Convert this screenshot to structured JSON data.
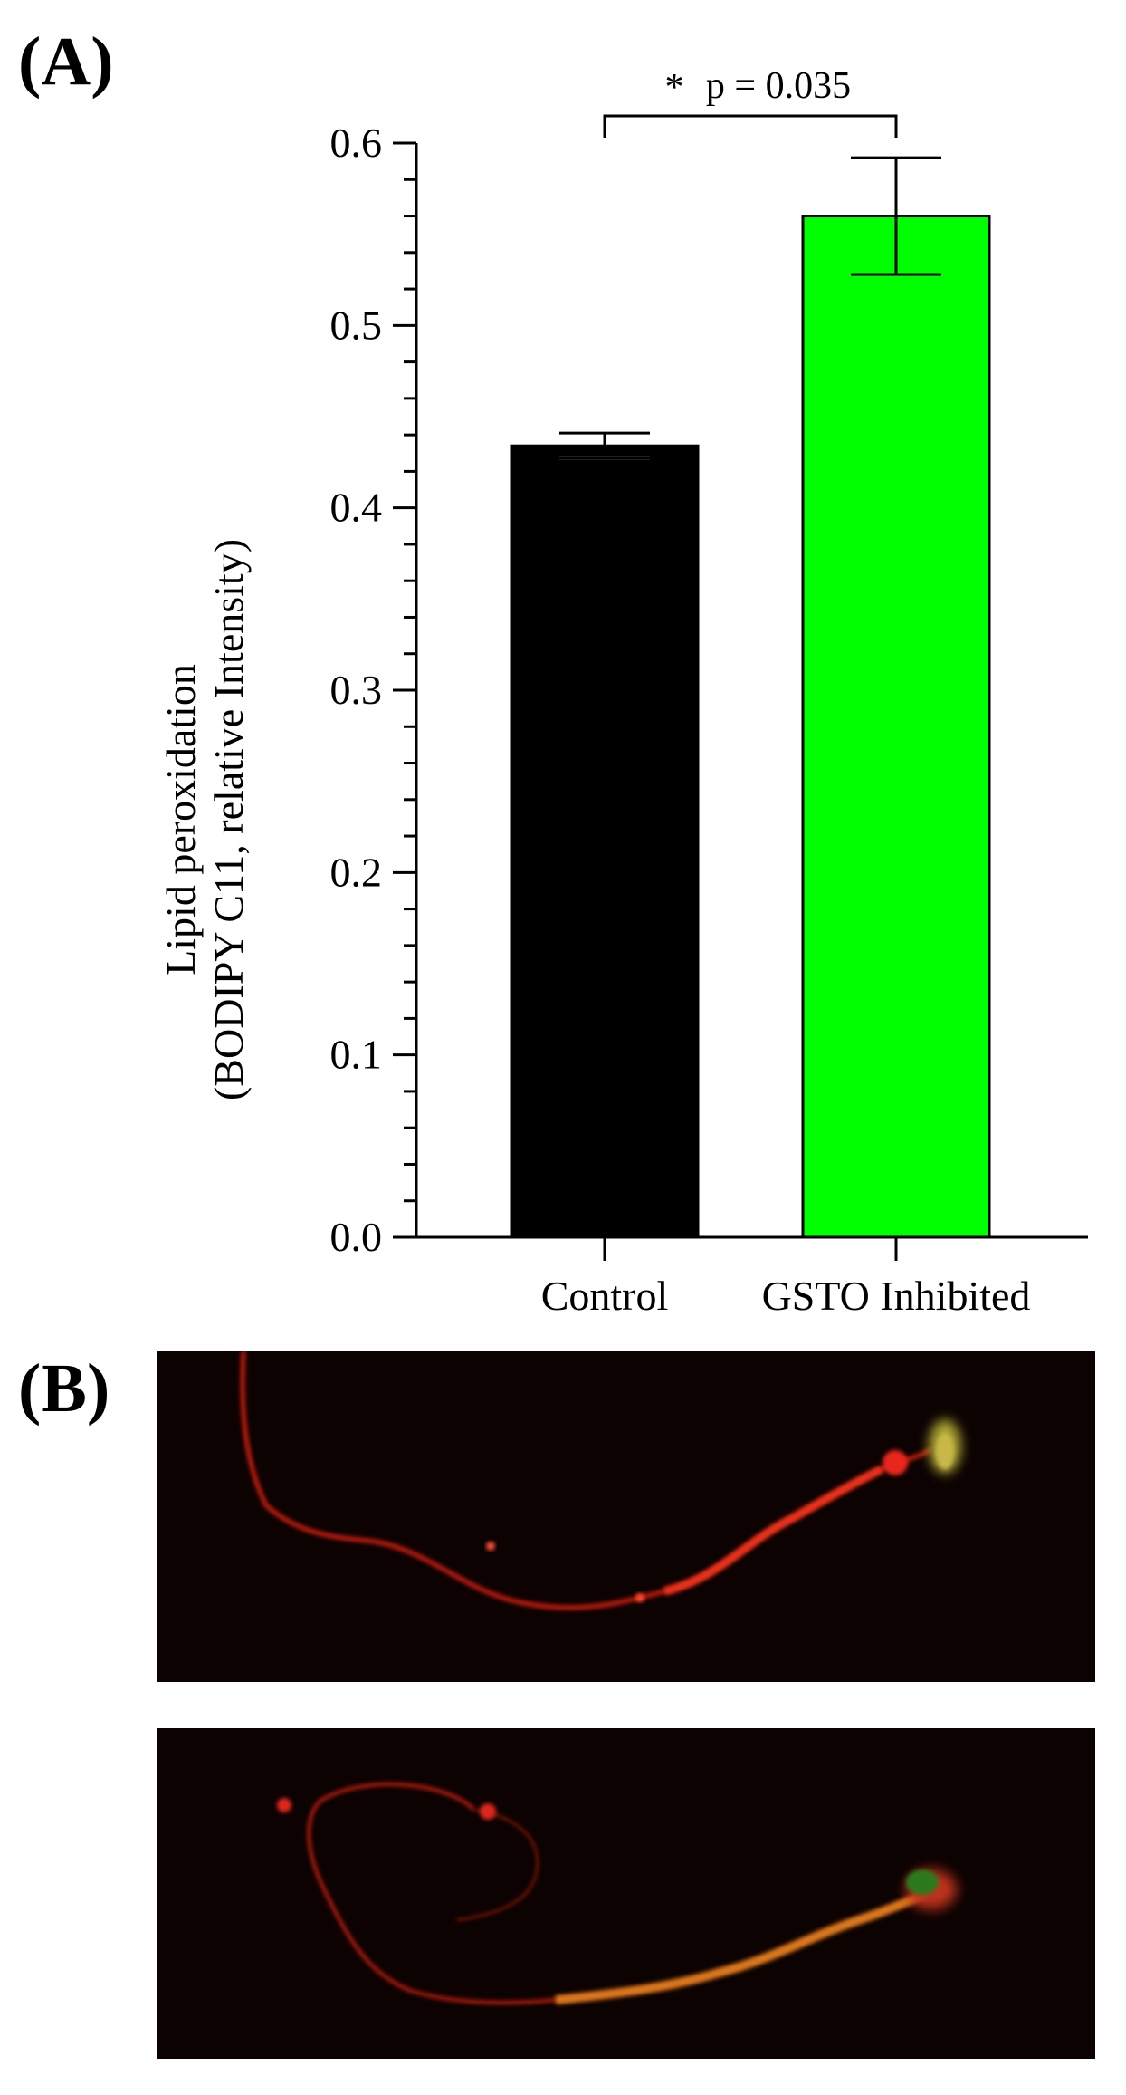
{
  "panels": {
    "a_label": "(A)",
    "b_label": "(B)"
  },
  "chart_data": {
    "type": "bar",
    "categories": [
      "Control",
      "GSTO Inhibited"
    ],
    "values": [
      0.434,
      0.56
    ],
    "error": [
      0.007,
      0.032
    ],
    "ylabel_line1": "Lipid peroxidation",
    "ylabel_line2": "(BODIPY C11, relative Intensity)",
    "ylim": [
      0.0,
      0.6
    ],
    "yticks": [
      "0.0",
      "0.1",
      "0.2",
      "0.3",
      "0.4",
      "0.5",
      "0.6"
    ],
    "bar_colors": [
      "#000000",
      "#00ff00"
    ],
    "significance": {
      "star": "*",
      "text": "p = 0.035"
    },
    "grid": false,
    "legend": "none"
  },
  "micrographs": [
    {
      "description_color": "#e0281a"
    },
    {
      "description_color": "#e0281a"
    }
  ]
}
